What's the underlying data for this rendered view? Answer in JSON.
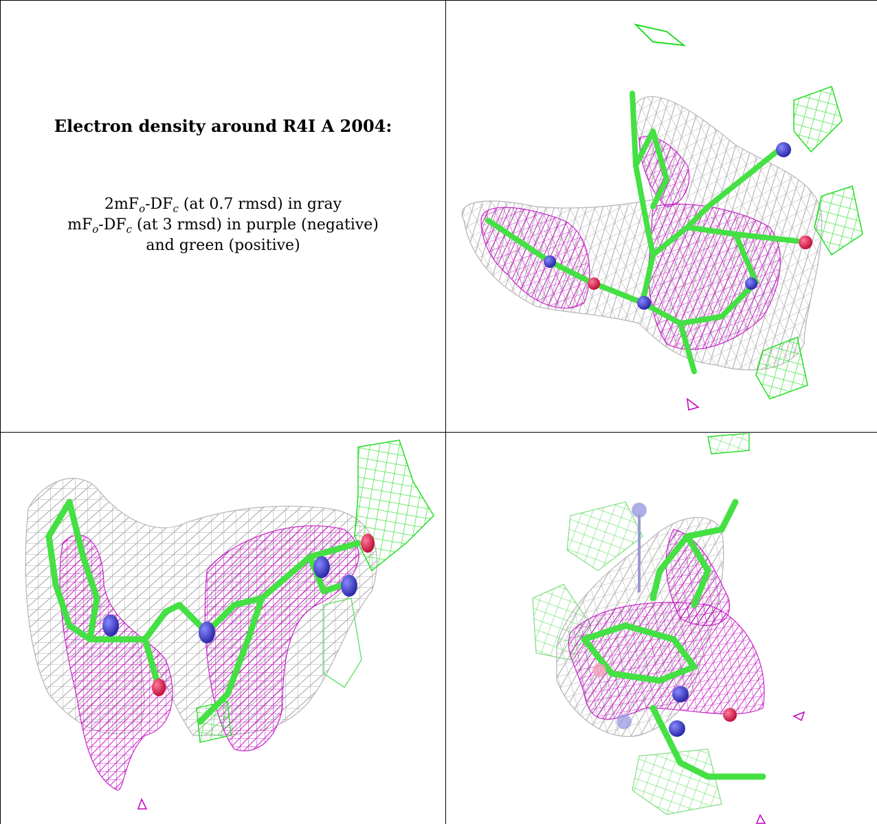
{
  "legend": {
    "title": "Electron density around R4I A 2004:",
    "line1": {
      "a": "2mF",
      "b": "o",
      "c": "-DF",
      "d": "c",
      "e": " (at 0.7 rmsd) in gray"
    },
    "line2": {
      "a": "mF",
      "b": "o",
      "c": "-DF",
      "d": "c",
      "e": " (at 3 rmsd) in purple (negative)"
    },
    "line3": "and green (positive)"
  },
  "colors": {
    "density_2fofc": "#9a9a9a",
    "density_negative": "#c000c0",
    "density_positive": "#22dd22",
    "carbon": "#44e044",
    "nitrogen": "#3a3acc",
    "oxygen": "#e0204a",
    "border": "#000000"
  },
  "views": [
    {
      "name": "view-top-right",
      "icons": [
        "molecule-stick-model",
        "gray-mesh",
        "purple-mesh",
        "green-mesh"
      ]
    },
    {
      "name": "view-bottom-left",
      "icons": [
        "molecule-stick-model",
        "gray-mesh",
        "purple-mesh",
        "green-mesh"
      ]
    },
    {
      "name": "view-bottom-right",
      "icons": [
        "molecule-stick-model",
        "gray-mesh",
        "purple-mesh",
        "green-mesh"
      ]
    }
  ]
}
